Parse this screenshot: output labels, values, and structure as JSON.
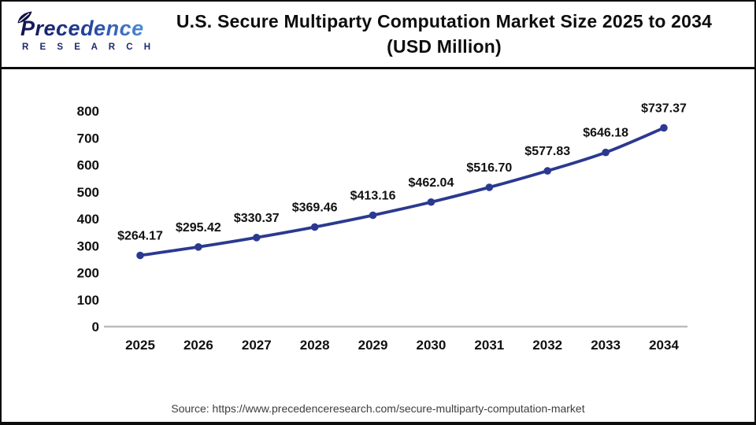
{
  "logo": {
    "brand": "Precedence",
    "subtitle": "R E S E A R C H"
  },
  "header": {
    "title_line1": "U.S. Secure Multiparty Computation Market Size 2025 to 2034",
    "title_line2": "(USD Million)"
  },
  "chart_data": {
    "type": "line",
    "title": "U.S. Secure Multiparty Computation Market Size 2025 to 2034 (USD Million)",
    "categories": [
      "2025",
      "2026",
      "2027",
      "2028",
      "2029",
      "2030",
      "2031",
      "2032",
      "2033",
      "2034"
    ],
    "values": [
      264.17,
      295.42,
      330.37,
      369.46,
      413.16,
      462.04,
      516.7,
      577.83,
      646.18,
      737.37
    ],
    "point_labels": [
      "$264.17",
      "$295.42",
      "$330.37",
      "$369.46",
      "$413.16",
      "$462.04",
      "$516.70",
      "$577.83",
      "$646.18",
      "$737.37"
    ],
    "xlabel": "",
    "ylabel": "",
    "ylim": [
      0,
      800
    ],
    "yticks": [
      0,
      100,
      200,
      300,
      400,
      500,
      600,
      700,
      800
    ],
    "grid": false,
    "legend": false,
    "colors": {
      "line": "#2b3990",
      "marker": "#2b3990",
      "axis_line": "#bcbcbc",
      "tick_text": "#111111",
      "label_text": "#111111"
    }
  },
  "footer": {
    "source": "Source: https://www.precedenceresearch.com/secure-multiparty-computation-market"
  }
}
